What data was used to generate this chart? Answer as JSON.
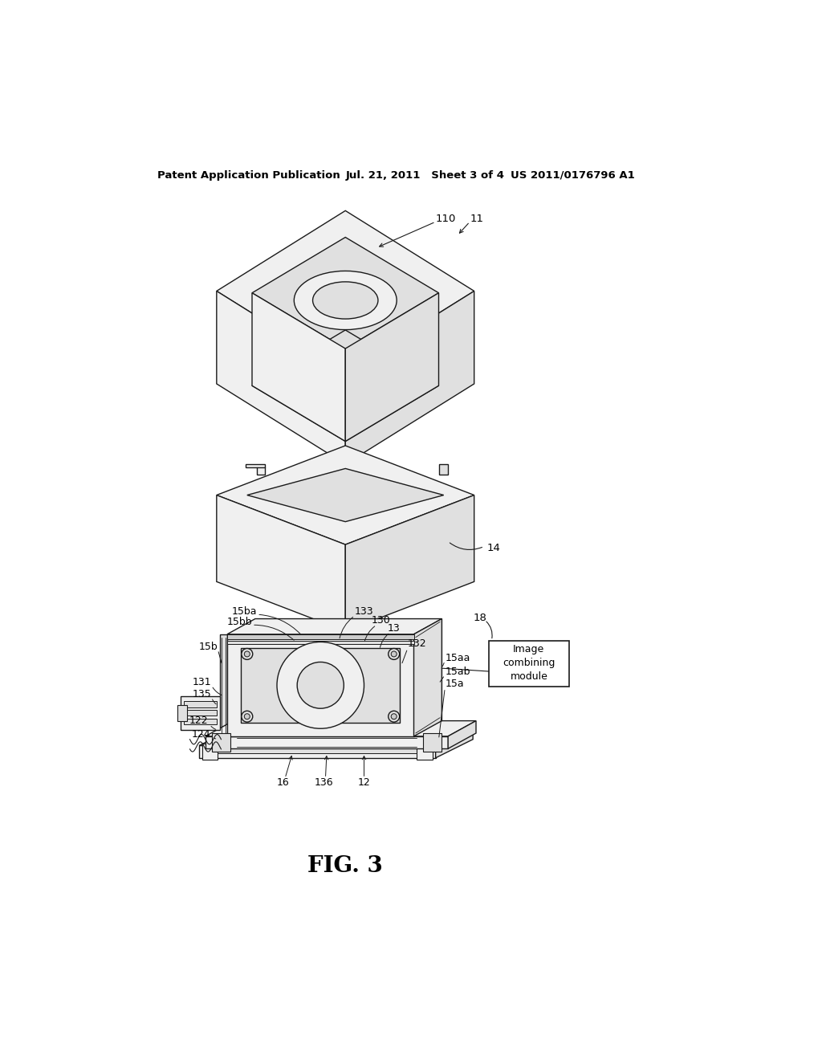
{
  "background_color": "#ffffff",
  "line_color": "#1a1a1a",
  "fill_white": "#ffffff",
  "fill_light": "#f0f0f0",
  "fill_mid": "#e0e0e0",
  "fill_dark": "#cccccc",
  "header_left": "Patent Application Publication",
  "header_center": "Jul. 21, 2011   Sheet 3 of 4",
  "header_right": "US 2011/0176796 A1",
  "figure_caption": "FIG. 3"
}
